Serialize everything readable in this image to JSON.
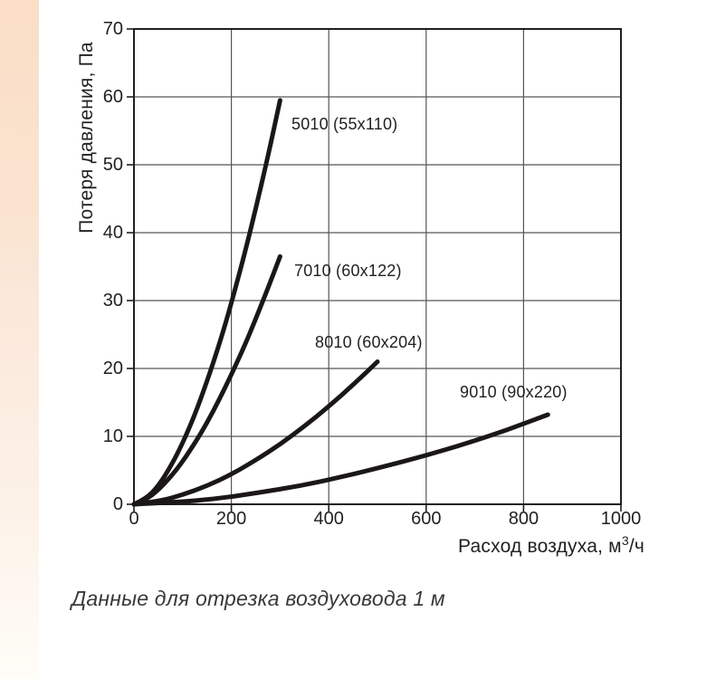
{
  "chart_data": {
    "type": "line",
    "title": "",
    "xlabel": "Расход воздуха, м³/ч",
    "xlabel_parts": {
      "base": "Расход воздуха, м",
      "sup": "3",
      "tail": "/ч"
    },
    "ylabel": "Потеря давления, Па",
    "xlim": [
      0,
      1000
    ],
    "ylim": [
      0,
      70
    ],
    "x_ticks": [
      0,
      200,
      400,
      600,
      800,
      1000
    ],
    "y_ticks": [
      0,
      10,
      20,
      30,
      40,
      50,
      60,
      70
    ],
    "grid": true,
    "legend_position": "inline-labels-at-curve-tips",
    "series": [
      {
        "name": "5010 (55x110)",
        "points": [
          [
            0,
            0
          ],
          [
            25,
            0.8
          ],
          [
            50,
            2.7
          ],
          [
            75,
            5.5
          ],
          [
            100,
            9.0
          ],
          [
            125,
            13.2
          ],
          [
            150,
            18.1
          ],
          [
            175,
            23.5
          ],
          [
            200,
            29.6
          ],
          [
            225,
            36.3
          ],
          [
            250,
            43.5
          ],
          [
            275,
            51.2
          ],
          [
            300,
            59.5
          ]
        ]
      },
      {
        "name": "7010 (60x122)",
        "points": [
          [
            0,
            0
          ],
          [
            25,
            0.7
          ],
          [
            50,
            2.1
          ],
          [
            75,
            4.0
          ],
          [
            100,
            6.3
          ],
          [
            125,
            9.0
          ],
          [
            150,
            12.0
          ],
          [
            175,
            15.4
          ],
          [
            200,
            19.1
          ],
          [
            225,
            23.0
          ],
          [
            250,
            27.3
          ],
          [
            275,
            31.8
          ],
          [
            300,
            36.5
          ]
        ]
      },
      {
        "name": "8010 (60x204)",
        "points": [
          [
            0,
            0
          ],
          [
            50,
            0.4
          ],
          [
            100,
            1.4
          ],
          [
            150,
            2.7
          ],
          [
            200,
            4.4
          ],
          [
            250,
            6.5
          ],
          [
            300,
            8.8
          ],
          [
            350,
            11.5
          ],
          [
            400,
            14.4
          ],
          [
            450,
            17.6
          ],
          [
            500,
            21.0
          ]
        ]
      },
      {
        "name": "9010 (90x220)",
        "points": [
          [
            0,
            0
          ],
          [
            85,
            0.3
          ],
          [
            170,
            0.8
          ],
          [
            255,
            1.7
          ],
          [
            340,
            2.7
          ],
          [
            425,
            4.0
          ],
          [
            510,
            5.5
          ],
          [
            595,
            7.1
          ],
          [
            680,
            8.9
          ],
          [
            765,
            10.9
          ],
          [
            850,
            13.2
          ]
        ]
      }
    ],
    "caption": "Данные для отрезка воздуховода 1 м",
    "colors": {
      "curve": "#1b1718",
      "grid": "#55565a",
      "axis_border": "#231f20",
      "text": "#231f20",
      "accent_strip_top": "#fadec6",
      "accent_strip_bottom": "#fffdf8"
    }
  }
}
